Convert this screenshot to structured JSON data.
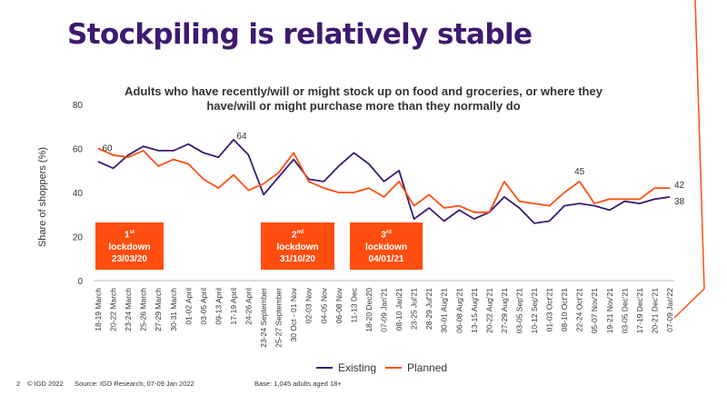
{
  "title": "Stockpiling is relatively stable",
  "subtitle": "Adults who have recently/will or might stock up on food and groceries, or where they have/will or might purchase more than they normally do",
  "chart_data": {
    "type": "line",
    "ylabel": "Share of shoppers (%)",
    "ylim": [
      0,
      80
    ],
    "yticks": [
      "0",
      "20",
      "40",
      "60",
      "80"
    ],
    "grid": false,
    "legend_position": "bottom",
    "categories": [
      "18-19 March",
      "20-22 March",
      "23-24 March",
      "25-26 March",
      "27-29 March",
      "30-31 March",
      "01-02 April",
      "03-05 April",
      "09-13 April",
      "17-19 April",
      "24-26 April",
      "23-24 September",
      "25-27 September",
      "30 Oct - 01 Nov",
      "02-03 Nov",
      "04-05 Nov",
      "06-08 Nov",
      "11-13 Dec",
      "18-20 Dec20",
      "07-09 Jan'21",
      "08-10 Jan21",
      "23-25 Jul'21",
      "28-29 Jul'21",
      "30-01 Aug'21",
      "06-08 Aug'21",
      "13-15 Aug'21",
      "20-22 Aug'21",
      "27-29 Aug'21",
      "03-05 Sep'21",
      "10-12 Sep'21",
      "01-03 Oct'21",
      "08-10 Oct'21",
      "22-24 Oct'21",
      "05-07 Nov'21",
      "19-21 Nov'21",
      "03-05 Dec'21",
      "17-19 Dec'21",
      "20-21 Dec'21",
      "07-09 Jan'22"
    ],
    "series": [
      {
        "name": "Existing",
        "color": "#3a1a72",
        "values": [
          54,
          51,
          57,
          61,
          59,
          59,
          62,
          58,
          56,
          64,
          57,
          39,
          47,
          55,
          46,
          45,
          52,
          58,
          53,
          45,
          50,
          28,
          33,
          27,
          32,
          28,
          31,
          38,
          33,
          26,
          27,
          34,
          35,
          34,
          32,
          36,
          35,
          37,
          38
        ]
      },
      {
        "name": "Planned",
        "color": "#ff4e0f",
        "values": [
          60,
          57,
          56,
          59,
          52,
          55,
          53,
          46,
          42,
          48,
          41,
          44,
          49,
          58,
          45,
          42,
          40,
          40,
          42,
          38,
          45,
          34,
          39,
          33,
          34,
          31,
          31,
          45,
          36,
          35,
          34,
          40,
          45,
          35,
          37,
          37,
          37,
          42,
          42
        ]
      }
    ],
    "annotations": [
      {
        "label": "60",
        "series": 1,
        "index": 0
      },
      {
        "label": "64",
        "series": 0,
        "index": 9
      },
      {
        "label": "45",
        "series": 1,
        "index": 32
      },
      {
        "label": "42",
        "series": 1,
        "index": 38
      },
      {
        "label": "38",
        "series": 0,
        "index": 38
      }
    ],
    "lockdowns": [
      {
        "ordinal": "1",
        "suffix": "st",
        "line2": "lockdown",
        "date": "23/03/20"
      },
      {
        "ordinal": "2",
        "suffix": "nd",
        "line2": "lockdown",
        "date": "31/10/20"
      },
      {
        "ordinal": "3",
        "suffix": "rd",
        "line2": "lockdown",
        "date": "04/01/21"
      }
    ]
  },
  "footer": {
    "page": "2",
    "copyright": "© IGD 2022",
    "source": "Source: IGD Research, 07-09 Jan 2022",
    "base": "Base: 1,045 adults aged 18+"
  }
}
